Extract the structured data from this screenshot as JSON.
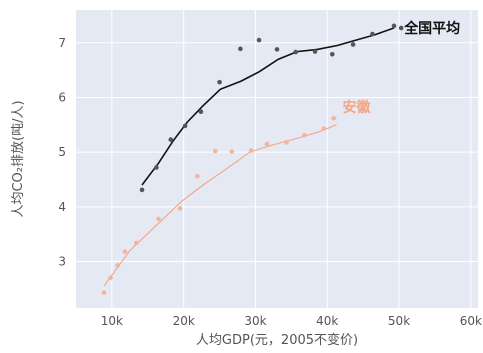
{
  "chart_data": {
    "type": "scatter",
    "title": "",
    "xlabel": "人均GDP(元，2005不变价)",
    "ylabel": "人均CO₂排放(吨/人)",
    "xlim": [
      5000,
      61000
    ],
    "ylim": [
      2.15,
      7.6
    ],
    "x_ticks": [
      10000,
      20000,
      30000,
      40000,
      50000,
      60000
    ],
    "x_tick_labels": [
      "10k",
      "20k",
      "30k",
      "40k",
      "50k",
      "60k"
    ],
    "y_ticks": [
      3,
      4,
      5,
      6,
      7
    ],
    "y_tick_labels": [
      "3",
      "4",
      "5",
      "6",
      "7"
    ],
    "grid": true,
    "background": "#e4e9f4",
    "series": [
      {
        "name": "全国平均",
        "color": "#111111",
        "point_color": "#555555",
        "points": [
          [
            14200,
            4.31
          ],
          [
            16200,
            4.72
          ],
          [
            18200,
            5.23
          ],
          [
            20200,
            5.48
          ],
          [
            22400,
            5.74
          ],
          [
            25000,
            6.28
          ],
          [
            27900,
            6.89
          ],
          [
            30500,
            7.05
          ],
          [
            33000,
            6.88
          ],
          [
            35600,
            6.83
          ],
          [
            38300,
            6.84
          ],
          [
            40700,
            6.79
          ],
          [
            43600,
            6.97
          ],
          [
            46300,
            7.16
          ],
          [
            49300,
            7.31
          ],
          [
            50300,
            7.27
          ]
        ],
        "trend": [
          [
            14200,
            4.4
          ],
          [
            16500,
            4.8
          ],
          [
            18500,
            5.2
          ],
          [
            20500,
            5.55
          ],
          [
            22700,
            5.85
          ],
          [
            25100,
            6.15
          ],
          [
            28000,
            6.3
          ],
          [
            30500,
            6.47
          ],
          [
            33200,
            6.7
          ],
          [
            35800,
            6.84
          ],
          [
            38600,
            6.88
          ],
          [
            41400,
            6.95
          ],
          [
            44000,
            7.05
          ],
          [
            46700,
            7.15
          ],
          [
            49300,
            7.27
          ]
        ]
      },
      {
        "name": "安徽",
        "color": "#f4a582",
        "point_color": "#f4b49a",
        "points": [
          [
            8900,
            2.43
          ],
          [
            9800,
            2.7
          ],
          [
            10800,
            2.93
          ],
          [
            11800,
            3.18
          ],
          [
            13400,
            3.34
          ],
          [
            16500,
            3.78
          ],
          [
            19500,
            3.97
          ],
          [
            21900,
            4.56
          ],
          [
            24400,
            5.02
          ],
          [
            26700,
            5.01
          ],
          [
            29400,
            5.03
          ],
          [
            31600,
            5.15
          ],
          [
            34300,
            5.18
          ],
          [
            36800,
            5.31
          ],
          [
            39500,
            5.43
          ],
          [
            40900,
            5.62
          ]
        ],
        "trend": [
          [
            8900,
            2.55
          ],
          [
            12500,
            3.2
          ],
          [
            16500,
            3.7
          ],
          [
            19700,
            4.1
          ],
          [
            22700,
            4.4
          ],
          [
            26000,
            4.7
          ],
          [
            29200,
            5.0
          ],
          [
            32300,
            5.13
          ],
          [
            35700,
            5.25
          ],
          [
            38800,
            5.37
          ],
          [
            41300,
            5.5
          ]
        ]
      }
    ],
    "annotations": [
      {
        "text": "全国平均",
        "series": 0,
        "color": "#111111"
      },
      {
        "text": "安徽",
        "series": 1,
        "color": "#f4a582"
      }
    ]
  }
}
